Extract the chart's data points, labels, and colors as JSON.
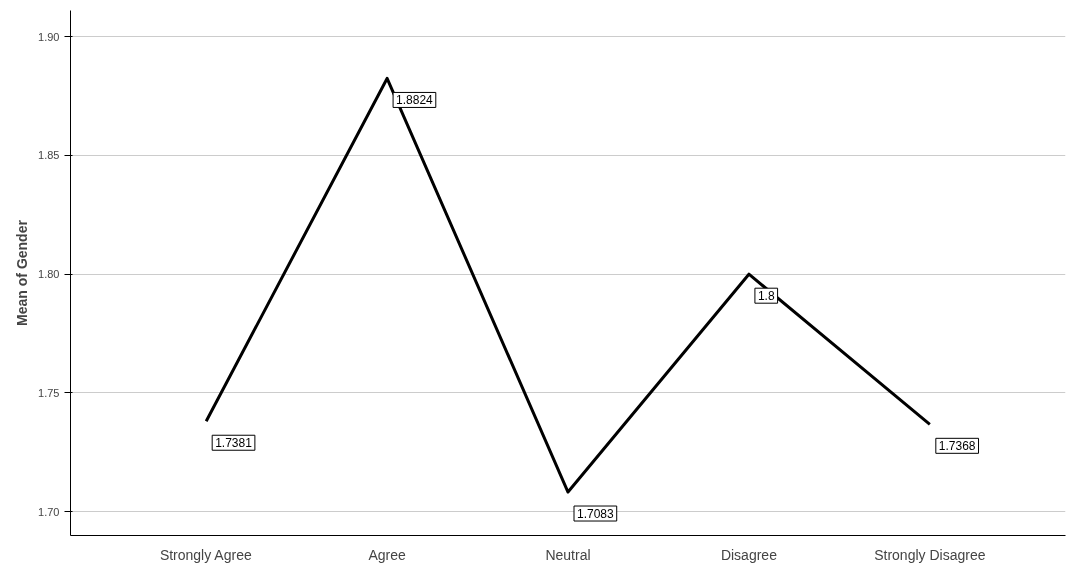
{
  "chart_data": {
    "type": "line",
    "ylabel": "Mean of Gender",
    "categories": [
      "Strongly Agree",
      "Agree",
      "Neutral",
      "Disagree",
      "Strongly Disagree"
    ],
    "values": [
      1.7381,
      1.8824,
      1.7083,
      1.8,
      1.7368
    ],
    "color": "#000000",
    "ylim": [
      1.69,
      1.911
    ],
    "yticks": [
      {
        "value": 1.7,
        "label": "1.70"
      },
      {
        "value": 1.75,
        "label": "1.75"
      },
      {
        "value": 1.8,
        "label": "1.80"
      },
      {
        "value": 1.85,
        "label": "1.85"
      },
      {
        "value": 1.9,
        "label": "1.90"
      }
    ],
    "grid": "y",
    "data_labels": true,
    "marker": "none",
    "line_style": "solid"
  }
}
